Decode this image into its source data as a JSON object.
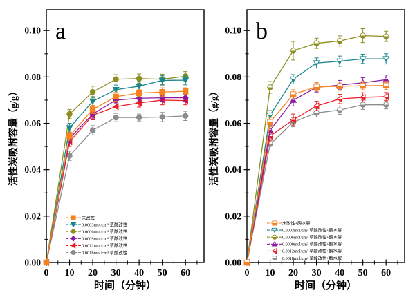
{
  "figure": {
    "background": "#ffffff",
    "panel_letters": [
      "a",
      "b"
    ]
  },
  "chart_data": [
    {
      "type": "line",
      "panel_label": "a",
      "xlabel": "时间（分钟）",
      "ylabel": "活性炭吸附容量（g/g）",
      "x": [
        0,
        10,
        20,
        30,
        40,
        50,
        60
      ],
      "x_ticks": [
        0,
        10,
        20,
        30,
        40,
        50,
        60
      ],
      "y_ticks": [
        "0.00",
        "0.02",
        "0.04",
        "0.06",
        "0.08",
        "0.10"
      ],
      "xlim": [
        0,
        68
      ],
      "ylim": [
        0,
        0.109
      ],
      "x_minor_step": 5,
      "y_minor_step": 0.01,
      "grid": false,
      "legend_position": "inside lower-left",
      "series": [
        {
          "name": "未改性",
          "color": "#F5821F",
          "marker": "square",
          "half": false,
          "values": [
            0,
            0.0545,
            0.066,
            0.0715,
            0.073,
            0.0735,
            0.0738
          ],
          "errors": [
            0,
            0.0018,
            0.0018,
            0.002,
            0.0015,
            0.0018,
            0.0015
          ]
        },
        {
          "name": "0.0003mol/cm³ 草酸改性",
          "color": "#1B878C",
          "marker": "triangle-down",
          "half": false,
          "values": [
            0,
            0.058,
            0.0695,
            0.0745,
            0.076,
            0.0785,
            0.0786
          ],
          "errors": [
            0,
            0.002,
            0.002,
            0.002,
            0.002,
            0.002,
            0.002
          ]
        },
        {
          "name": "0.0006mol/cm³ 草酸改性",
          "color": "#8E8E20",
          "marker": "circle",
          "half": false,
          "values": [
            0,
            0.064,
            0.0735,
            0.079,
            0.0793,
            0.079,
            0.0803
          ],
          "errors": [
            0,
            0.002,
            0.0025,
            0.002,
            0.002,
            0.0022,
            0.002
          ]
        },
        {
          "name": "0.0009mol/cm³ 草酸改性",
          "color": "#8B1A9E",
          "marker": "diamond",
          "half": false,
          "values": [
            0,
            0.0535,
            0.064,
            0.07,
            0.0708,
            0.071,
            0.071
          ],
          "errors": [
            0,
            0.0018,
            0.0018,
            0.0015,
            0.0015,
            0.0015,
            0.0015
          ]
        },
        {
          "name": "0.0012mol/cm³ 草酸改性",
          "color": "#EC1C24",
          "marker": "triangle-left",
          "half": false,
          "values": [
            0,
            0.052,
            0.0635,
            0.0672,
            0.0688,
            0.07,
            0.0698
          ],
          "errors": [
            0,
            0.002,
            0.002,
            0.0018,
            0.0018,
            0.002,
            0.0018
          ]
        },
        {
          "name": "0.0018mol/cm³ 草酸改性",
          "color": "#8C8C8C",
          "marker": "circle",
          "half": false,
          "values": [
            0,
            0.046,
            0.057,
            0.0625,
            0.0625,
            0.0627,
            0.0632
          ],
          "errors": [
            0,
            0.002,
            0.002,
            0.0018,
            0.0015,
            0.002,
            0.002
          ]
        }
      ]
    },
    {
      "type": "line",
      "panel_label": "b",
      "xlabel": "时间（分钟）",
      "ylabel": "活性炭吸附容量（g/g）",
      "x": [
        0,
        10,
        20,
        30,
        40,
        50,
        60
      ],
      "x_ticks": [
        0,
        10,
        20,
        30,
        40,
        50,
        60
      ],
      "y_ticks": [
        "0.00",
        "0.02",
        "0.04",
        "0.06",
        "0.08",
        "0.10"
      ],
      "xlim": [
        0,
        68
      ],
      "ylim": [
        0,
        0.109
      ],
      "x_minor_step": 5,
      "y_minor_step": 0.01,
      "grid": false,
      "legend_position": "inside lower-left",
      "series": [
        {
          "name": "未改性+酶水解",
          "color": "#F5821F",
          "marker": "square",
          "half": true,
          "values": [
            0,
            0.0605,
            0.0725,
            0.0757,
            0.076,
            0.0762,
            0.0763
          ],
          "errors": [
            0,
            0.002,
            0.002,
            0.0018,
            0.0018,
            0.0018,
            0.0018
          ]
        },
        {
          "name": "0.0003mol/cm³ 草酸改性+酶水解",
          "color": "#1B878C",
          "marker": "triangle-down",
          "half": true,
          "values": [
            0,
            0.0635,
            0.079,
            0.086,
            0.0868,
            0.0878,
            0.0878
          ],
          "errors": [
            0,
            0.002,
            0.002,
            0.0022,
            0.0022,
            0.002,
            0.0022
          ]
        },
        {
          "name": "0.0006mol/cm³ 草酸改性+酶水解",
          "color": "#8E8E20",
          "marker": "circle",
          "half": true,
          "values": [
            0,
            0.0755,
            0.0913,
            0.0945,
            0.0955,
            0.0978,
            0.0975
          ],
          "errors": [
            0,
            0.0025,
            0.004,
            0.0022,
            0.0022,
            0.003,
            0.0022
          ]
        },
        {
          "name": "0.0009mol/cm³ 草酸改性+酶水解",
          "color": "#8B1A9E",
          "marker": "triangle-up",
          "half": true,
          "values": [
            0,
            0.057,
            0.07,
            0.0755,
            0.0765,
            0.0775,
            0.0788
          ],
          "errors": [
            0,
            0.002,
            0.0025,
            0.002,
            0.002,
            0.0022,
            0.002
          ]
        },
        {
          "name": "0.0012mol/cm³ 草酸改性+酶水解",
          "color": "#EC1C24",
          "marker": "triangle-left",
          "half": true,
          "values": [
            0,
            0.0545,
            0.0615,
            0.0675,
            0.0705,
            0.0712,
            0.0715
          ],
          "errors": [
            0,
            0.002,
            0.0025,
            0.002,
            0.002,
            0.002,
            0.0018
          ]
        },
        {
          "name": "0.0018mol/cm³ 草酸改性+酶水解",
          "color": "#8C8C8C",
          "marker": "circle",
          "half": true,
          "values": [
            0,
            0.051,
            0.0605,
            0.0645,
            0.0657,
            0.068,
            0.068
          ],
          "errors": [
            0,
            0.002,
            0.002,
            0.0018,
            0.0018,
            0.002,
            0.0018
          ]
        }
      ]
    }
  ]
}
